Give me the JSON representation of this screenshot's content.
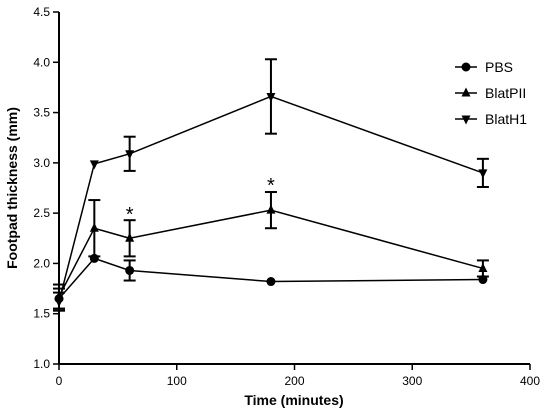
{
  "chart_data": {
    "type": "line",
    "title": "",
    "xlabel": "Time (minutes)",
    "ylabel": "Footpad thickness (mm)",
    "xlim": [
      0,
      400
    ],
    "ylim": [
      1.0,
      4.5
    ],
    "xticks": [
      0,
      100,
      200,
      300,
      400
    ],
    "yticks": [
      1.0,
      1.5,
      2.0,
      2.5,
      3.0,
      3.5,
      4.0,
      4.5
    ],
    "xtick_labels": [
      "0",
      "100",
      "200",
      "300",
      "400"
    ],
    "ytick_labels": [
      "1.0",
      "1.5",
      "2.0",
      "2.5",
      "3.0",
      "3.5",
      "4.0",
      "4.5"
    ],
    "grid": false,
    "legend_position": "top-right",
    "series": [
      {
        "name": "PBS",
        "marker": "circle",
        "x": [
          0,
          30,
          60,
          180,
          360
        ],
        "y": [
          1.65,
          2.05,
          1.93,
          1.82,
          1.84
        ],
        "err": [
          0.1,
          0.0,
          0.1,
          0.0,
          0.0
        ]
      },
      {
        "name": "BlatPII",
        "marker": "triangle-up",
        "x": [
          0,
          30,
          60,
          180,
          360
        ],
        "y": [
          1.67,
          2.35,
          2.25,
          2.53,
          1.95
        ],
        "err": [
          0.12,
          0.28,
          0.18,
          0.18,
          0.08
        ]
      },
      {
        "name": "BlatH1",
        "marker": "triangle-down",
        "x": [
          0,
          30,
          60,
          180,
          360
        ],
        "y": [
          1.62,
          2.99,
          3.09,
          3.66,
          2.9
        ],
        "err": [
          0.09,
          0.0,
          0.17,
          0.37,
          0.14
        ]
      }
    ],
    "annotations": [
      {
        "text": "*",
        "x": 60,
        "y": 2.5
      },
      {
        "text": "*",
        "x": 180,
        "y": 2.79
      }
    ]
  }
}
